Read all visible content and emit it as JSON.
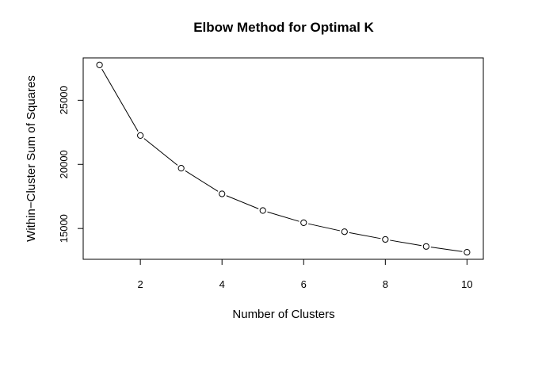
{
  "chart_data": {
    "type": "line",
    "title": "Elbow Method for Optimal K",
    "xlabel": "Number of Clusters",
    "ylabel": "Within−Cluster Sum of Squares",
    "x": [
      1,
      2,
      3,
      4,
      5,
      6,
      7,
      8,
      9,
      10
    ],
    "y": [
      27750,
      22250,
      19700,
      17700,
      16400,
      15450,
      14750,
      14150,
      13600,
      13150
    ],
    "xlim": [
      0.6,
      10.4
    ],
    "ylim": [
      12600,
      28300
    ],
    "xticks": [
      2,
      4,
      6,
      8,
      10
    ],
    "yticks": [
      15000,
      20000,
      25000
    ],
    "grid": false,
    "legend": "none",
    "markers": "open-circle",
    "colors": {
      "line": "#000000",
      "marker_fill": "#ffffff",
      "frame": "#000000"
    }
  }
}
